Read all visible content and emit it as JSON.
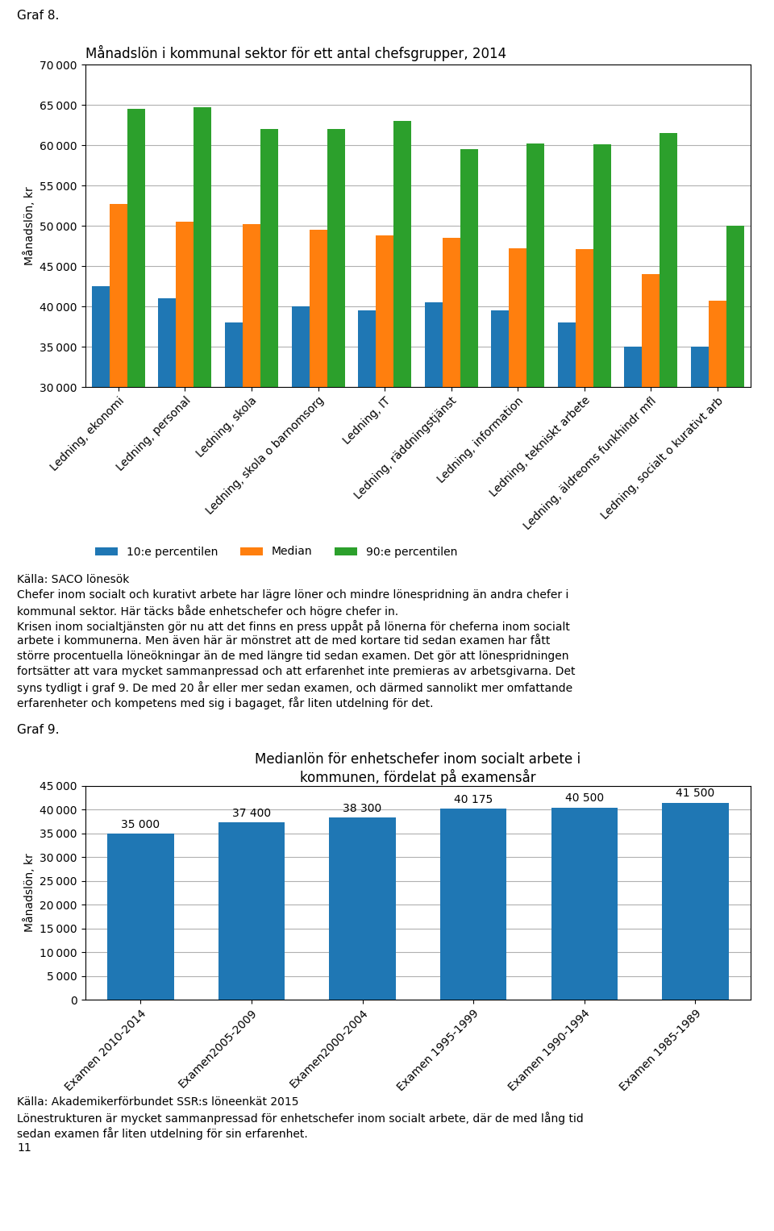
{
  "chart_data": [
    {
      "type": "bar",
      "title": "Månadslön i kommunal sektor för ett antal chefsgrupper, 2014",
      "y_label": "Månadslön, kr",
      "categories": [
        "Ledning, ekonomi",
        "Ledning, personal",
        "Ledning, skola",
        "Ledning, skola o barnomsorg",
        "Ledning, IT",
        "Ledning, räddningstjänst",
        "Ledning, information",
        "Ledning, tekniskt arbete",
        "Ledning, äldreoms funkhindr mfl",
        "Ledning, socialt o kurativt arb"
      ],
      "series": [
        {
          "name": "10:e percentilen",
          "values": [
            42500,
            41000,
            38000,
            40000,
            39500,
            40500,
            39500,
            38000,
            35000,
            35000
          ]
        },
        {
          "name": "Median",
          "values": [
            52700,
            50500,
            50200,
            49500,
            48800,
            48500,
            47200,
            47100,
            44000,
            40700
          ]
        },
        {
          "name": "90:e percentilen",
          "values": [
            64500,
            64700,
            62000,
            62000,
            63000,
            59500,
            60200,
            60100,
            61500,
            50000
          ]
        }
      ],
      "ylim": [
        30000,
        70000
      ],
      "yticks": [
        {
          "value": 30000,
          "label": "30 000"
        },
        {
          "value": 35000,
          "label": "35 000"
        },
        {
          "value": 40000,
          "label": "40 000"
        },
        {
          "value": 45000,
          "label": "45 000"
        },
        {
          "value": 50000,
          "label": "50 000"
        },
        {
          "value": 55000,
          "label": "55 000"
        },
        {
          "value": 60000,
          "label": "60 000"
        },
        {
          "value": 65000,
          "label": "65 000"
        },
        {
          "value": 70000,
          "label": "70 000"
        }
      ],
      "grid": true,
      "legend": "upper left",
      "annotations": [
        "Graf 8.",
        "Källa: SACO lönesök",
        "Chefer inom socialt och kurativt arbete har lägre löner och mindre lönespridning än andra chefer i",
        "kommunal sektor. Här täcks både enhetschefer och högre chefer in.",
        "Krisen inom socialtjänsten gör nu att det finns en press uppåt på lönerna för cheferna inom socialt",
        "arbete i kommunerna. Men även här är mönstret att de med kortare tid sedan examen har fått",
        "större procentuella löneökningar än de med längre tid sedan examen. Det gör att lönespridningen",
        "fortsätter att vara mycket sammanpressad och att erfarenhet inte premieras av arbetsgivarna. Det",
        "syns tydligt i graf 9. De med 20 år eller mer sedan examen, och därmed sannolikt mer omfattande",
        "erfarenheter och kompetens med sig i bagaget, får liten utdelning för det."
      ]
    },
    {
      "type": "bar",
      "title": "Medianlön för enhetschefer inom socialt arbete i\nkommunen, fördelat på examensår",
      "y_label": "Månadslön, kr",
      "categories": [
        "Examen 2010-2014",
        "Examen2005-2009",
        "Examen2000-2004",
        "Examen 1995-1999",
        "Examen 1990-1994",
        "Examen 1985-1989"
      ],
      "values": [
        35000,
        37400,
        38300,
        40175,
        40500,
        41500
      ],
      "value_labels": [
        "35 000",
        "37 400",
        "38 300",
        "40 175",
        "40 500",
        "41 500"
      ],
      "data_labels": true,
      "ylim": [
        0,
        45000
      ],
      "yticks": [
        0,
        {
          "value": 5000,
          "label": "5 000"
        },
        {
          "value": 10000,
          "label": "10 000"
        },
        {
          "value": 15000,
          "label": "15 000"
        },
        {
          "value": 20000,
          "label": "20 000"
        },
        {
          "value": 25000,
          "label": "25 000"
        },
        {
          "value": 30000,
          "label": "30 000"
        },
        {
          "value": 35000,
          "label": "35 000"
        },
        {
          "value": 40000,
          "label": "40 000"
        },
        {
          "value": 45000,
          "label": "45 000"
        }
      ],
      "grid": true,
      "annotations": [
        "Graf 9.",
        "Källa: Akademikerförbundet SSR:s löneenkät 2015",
        "Lönestrukturen är mycket sammanpressad för enhetschefer inom socialt arbete, där de med lång tid",
        "sedan examen får liten utdelning för sin erfarenhet.",
        "11"
      ]
    }
  ]
}
